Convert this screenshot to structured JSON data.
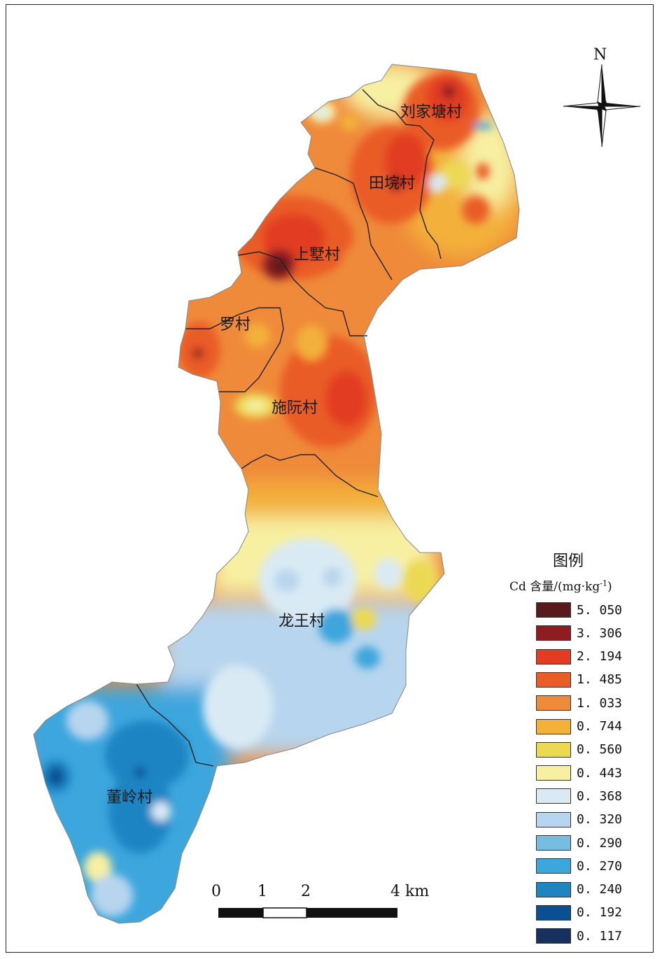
{
  "north_label": "N",
  "villages": [
    {
      "id": "liujiatang",
      "name": "刘家塘村"
    },
    {
      "id": "tianyuan",
      "name": "田垸村"
    },
    {
      "id": "shangshu",
      "name": "上墅村"
    },
    {
      "id": "luocun",
      "name": "罗村"
    },
    {
      "id": "shiruan",
      "name": "施阮村"
    },
    {
      "id": "longwang",
      "name": "龙王村"
    },
    {
      "id": "dongling",
      "name": "董岭村"
    }
  ],
  "legend": {
    "title": "图例",
    "unit_prefix": "Cd 含量/(mg·kg",
    "unit_sup": "-1",
    "unit_suffix": ")",
    "classes": [
      {
        "value": "5. 050",
        "color": "#5a1a1c"
      },
      {
        "value": "3. 306",
        "color": "#8f1d20"
      },
      {
        "value": "2. 194",
        "color": "#e23d22"
      },
      {
        "value": "1. 485",
        "color": "#ea5c28"
      },
      {
        "value": "1. 033",
        "color": "#ef8a3a"
      },
      {
        "value": "0. 744",
        "color": "#f3b13a"
      },
      {
        "value": "0. 560",
        "color": "#ecd952"
      },
      {
        "value": "0. 443",
        "color": "#f7f0a2"
      },
      {
        "value": "0. 368",
        "color": "#d9eaf4"
      },
      {
        "value": "0. 320",
        "color": "#b7d5ee"
      },
      {
        "value": "0. 290",
        "color": "#77bde2"
      },
      {
        "value": "0. 270",
        "color": "#3da6dd"
      },
      {
        "value": "0. 240",
        "color": "#1f84c2"
      },
      {
        "value": "0. 192",
        "color": "#0b4f93"
      },
      {
        "value": "0. 117",
        "color": "#17315f"
      }
    ]
  },
  "scale_bar": {
    "labels": [
      "0",
      "1",
      "2",
      "4 km"
    ]
  }
}
